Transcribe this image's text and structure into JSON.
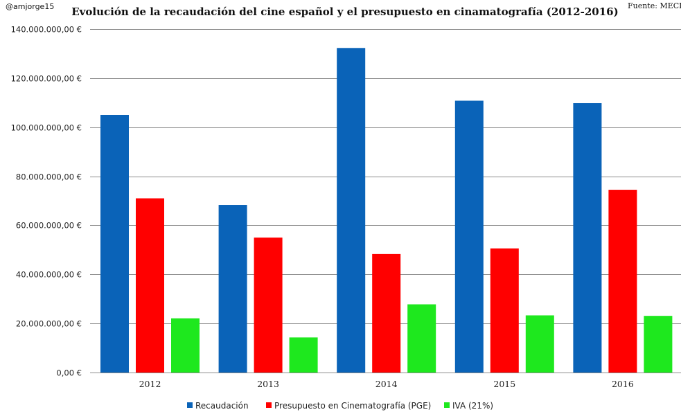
{
  "header": {
    "handle": "@amjorge15",
    "source": "Fuente: MECD"
  },
  "chart_data": {
    "type": "bar",
    "title": "Evolución de la recaudación del cine español y el presupuesto en cinamatografía (2012-2016)",
    "xlabel": "",
    "ylabel": "",
    "categories": [
      "2012",
      "2013",
      "2014",
      "2015",
      "2016"
    ],
    "series": [
      {
        "name": "Recaudación",
        "color": "#0a63b8",
        "values": [
          105000000,
          68300000,
          132300000,
          110800000,
          109800000
        ]
      },
      {
        "name": "Presupuesto en Cinematografía (PGE)",
        "color": "#ff0000",
        "values": [
          71000000,
          55000000,
          48300000,
          50600000,
          74500000
        ]
      },
      {
        "name": "IVA (21%)",
        "color": "#1ee81e",
        "values": [
          22100000,
          14300000,
          27800000,
          23300000,
          23100000
        ]
      }
    ],
    "ylim": [
      0,
      140000000
    ],
    "yticks": [
      {
        "value": 0,
        "label": "0,00 €"
      },
      {
        "value": 20000000,
        "label": "20.000.000,00 €"
      },
      {
        "value": 40000000,
        "label": "40.000.000,00 €"
      },
      {
        "value": 60000000,
        "label": "60.000.000,00 €"
      },
      {
        "value": 80000000,
        "label": "80.000.000,00 €"
      },
      {
        "value": 100000000,
        "label": "100.000.000,00 €"
      },
      {
        "value": 120000000,
        "label": "120.000.000,00 €"
      },
      {
        "value": 140000000,
        "label": "140.000.000,00 €"
      }
    ],
    "grid": true,
    "legend_position": "bottom"
  }
}
